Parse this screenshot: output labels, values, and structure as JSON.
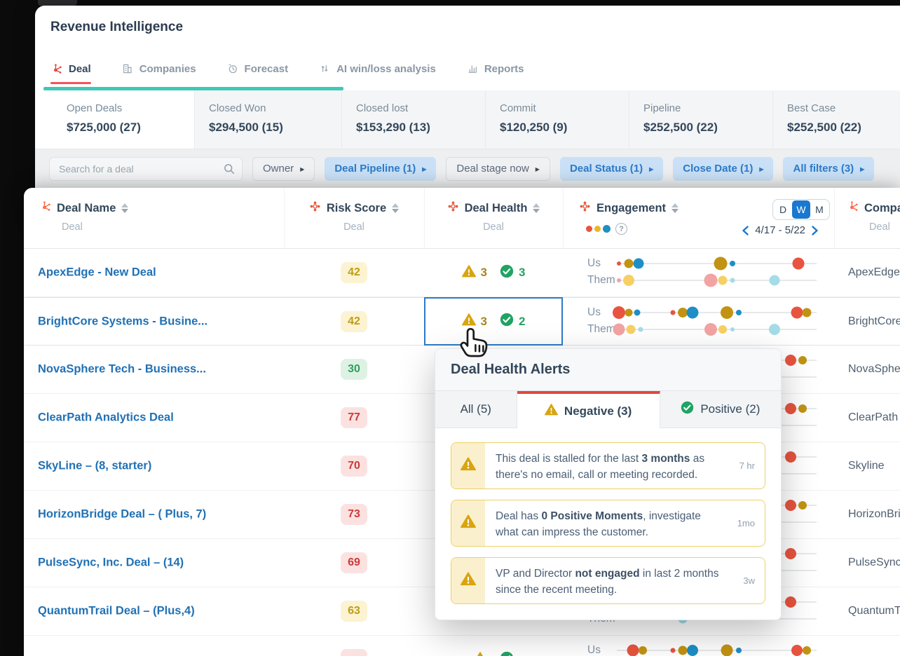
{
  "header": {
    "title": "Revenue Intelligence",
    "tabs": [
      {
        "label": "Deal",
        "icon": "deal-sprocket-icon",
        "active": true
      },
      {
        "label": "Companies",
        "icon": "companies-icon",
        "active": false
      },
      {
        "label": "Forecast",
        "icon": "forecast-icon",
        "active": false
      },
      {
        "label": "AI win/loss analysis",
        "icon": "ai-winloss-icon",
        "active": false
      },
      {
        "label": "Reports",
        "icon": "reports-icon",
        "active": false
      }
    ]
  },
  "summary_cards": [
    {
      "label": "Open Deals",
      "value": "$725,000 (27)",
      "active": true
    },
    {
      "label": "Closed Won",
      "value": "$294,500 (15)",
      "active": false
    },
    {
      "label": "Closed lost",
      "value": "$153,290 (13)",
      "active": false
    },
    {
      "label": "Commit",
      "value": "$120,250 (9)",
      "active": false
    },
    {
      "label": "Pipeline",
      "value": "$252,500 (22)",
      "active": false
    },
    {
      "label": "Best Case",
      "value": "$252,500 (22)",
      "active": false
    }
  ],
  "filter_bar": {
    "search_placeholder": "Search for a deal",
    "filters": [
      {
        "label": "Owner",
        "style": "plain"
      },
      {
        "label": "Deal Pipeline (1)",
        "style": "blue"
      },
      {
        "label": "Deal stage now",
        "style": "plain"
      },
      {
        "label": "Deal Status (1)",
        "style": "blue"
      },
      {
        "label": "Close Date (1)",
        "style": "blue"
      },
      {
        "label": "All filters (3)",
        "style": "blue"
      }
    ]
  },
  "table": {
    "columns": {
      "deal_name": {
        "label": "Deal Name",
        "sub": "Deal"
      },
      "risk_score": {
        "label": "Risk Score",
        "sub": "Deal"
      },
      "deal_health": {
        "label": "Deal Health",
        "sub": "Deal"
      },
      "engagement": {
        "label": "Engagement",
        "legend_colors": [
          "#e8543f",
          "#f0b429",
          "#1e8fc6"
        ],
        "period_options": [
          "D",
          "W",
          "M"
        ],
        "period_selected": "W",
        "date_range": "4/17 - 5/22"
      },
      "company": {
        "label": "Company",
        "sub": "Deal"
      }
    },
    "risk_levels": {
      "yellow": {
        "bg": "#fbf3d2",
        "text": "#c09c13"
      },
      "green": {
        "bg": "#def2e4",
        "text": "#2f9e60"
      },
      "red": {
        "bg": "#fbe2e0",
        "text": "#cc3a3a"
      }
    },
    "dot_colors": {
      "red": "#e8543f",
      "olive": "#c29312",
      "blue": "#1e8fc6",
      "pink": "#f2a3a3",
      "yellow": "#f6cf65",
      "lightblue": "#a5dce8"
    },
    "rows": [
      {
        "deal_name": "ApexEdge - New Deal",
        "risk": {
          "value": "42",
          "level": "yellow"
        },
        "health": {
          "neg": "3",
          "pos": "3",
          "hovered": false
        },
        "company": "ApexEdge",
        "engagement": {
          "us": [
            [
              1,
              "red",
              6
            ],
            [
              6,
              "olive",
              13
            ],
            [
              11,
              "blue",
              15
            ],
            [
              52,
              "olive",
              19
            ],
            [
              58,
              "blue",
              8
            ],
            [
              91,
              "red",
              17
            ]
          ],
          "them": [
            [
              1,
              "pink",
              6
            ],
            [
              6,
              "yellow",
              16
            ],
            [
              47,
              "pink",
              19
            ],
            [
              53,
              "yellow",
              13
            ],
            [
              58,
              "lightblue",
              7
            ],
            [
              79,
              "lightblue",
              15
            ]
          ]
        }
      },
      {
        "deal_name": "BrightCore Systems - Busine...",
        "risk": {
          "value": "42",
          "level": "yellow"
        },
        "health": {
          "neg": "3",
          "pos": "2",
          "hovered": true
        },
        "company": "BrightCore",
        "engagement": {
          "us": [
            [
              1,
              "red",
              18
            ],
            [
              6,
              "olive",
              11
            ],
            [
              10,
              "blue",
              9
            ],
            [
              28,
              "red",
              7
            ],
            [
              33,
              "olive",
              14
            ],
            [
              38,
              "blue",
              17
            ],
            [
              55,
              "olive",
              18
            ],
            [
              61,
              "blue",
              8
            ],
            [
              90,
              "red",
              17
            ],
            [
              95,
              "olive",
              13
            ]
          ],
          "them": [
            [
              1,
              "pink",
              17
            ],
            [
              7,
              "yellow",
              13
            ],
            [
              12,
              "lightblue",
              7
            ],
            [
              47,
              "pink",
              18
            ],
            [
              53,
              "yellow",
              12
            ],
            [
              58,
              "lightblue",
              6
            ],
            [
              79,
              "lightblue",
              16
            ]
          ]
        }
      },
      {
        "deal_name": "NovaSphere Tech - Business...",
        "risk": {
          "value": "30",
          "level": "green"
        },
        "health": {
          "neg": "",
          "pos": "",
          "hovered": false
        },
        "company": "NovaSphere",
        "engagement": {
          "us": [
            [
              87,
              "red",
              16
            ],
            [
              93,
              "olive",
              12
            ]
          ],
          "them": []
        }
      },
      {
        "deal_name": "ClearPath Analytics Deal",
        "risk": {
          "value": "77",
          "level": "red"
        },
        "health": {
          "neg": "",
          "pos": "",
          "hovered": false
        },
        "company": "ClearPath",
        "engagement": {
          "us": [
            [
              87,
              "red",
              16
            ],
            [
              93,
              "olive",
              12
            ]
          ],
          "them": []
        }
      },
      {
        "deal_name": "SkyLine – (8, starter)",
        "risk": {
          "value": "70",
          "level": "red"
        },
        "health": {
          "neg": "",
          "pos": "",
          "hovered": false
        },
        "company": "Skyline",
        "engagement": {
          "us": [
            [
              87,
              "red",
              16
            ]
          ],
          "them": []
        }
      },
      {
        "deal_name": "HorizonBridge Deal – ( Plus, 7)",
        "risk": {
          "value": "73",
          "level": "red"
        },
        "health": {
          "neg": "",
          "pos": "",
          "hovered": false
        },
        "company": "HorizonBridge",
        "engagement": {
          "us": [
            [
              87,
              "red",
              16
            ],
            [
              93,
              "olive",
              12
            ]
          ],
          "them": []
        }
      },
      {
        "deal_name": "PulseSync, Inc. Deal – (14)",
        "risk": {
          "value": "69",
          "level": "red"
        },
        "health": {
          "neg": "",
          "pos": "",
          "hovered": false
        },
        "company": "PulseSync",
        "engagement": {
          "us": [
            [
              87,
              "red",
              16
            ]
          ],
          "them": []
        }
      },
      {
        "deal_name": "QuantumTrail Deal – (Plus,4)",
        "risk": {
          "value": "63",
          "level": "yellow"
        },
        "health": {
          "neg": "",
          "pos": "",
          "hovered": false
        },
        "company": "QuantumTrail",
        "engagement": {
          "us": [
            [
              87,
              "red",
              16
            ]
          ],
          "them": [
            [
              33,
              "lightblue",
              13
            ]
          ]
        }
      },
      {
        "deal_name": "",
        "risk": {
          "value": "",
          "level": "red"
        },
        "health": {
          "neg": "",
          "pos": "",
          "hovered": false
        },
        "company": "",
        "engagement": {
          "us": [
            [
              8,
              "red",
              17
            ],
            [
              13,
              "olive",
              12
            ],
            [
              28,
              "red",
              7
            ],
            [
              33,
              "olive",
              13
            ],
            [
              38,
              "blue",
              16
            ],
            [
              55,
              "olive",
              17
            ],
            [
              61,
              "blue",
              8
            ],
            [
              90,
              "red",
              16
            ],
            [
              95,
              "olive",
              12
            ]
          ],
          "them": []
        }
      }
    ]
  },
  "alerts_popup": {
    "title": "Deal Health Alerts",
    "tabs": [
      {
        "label": "All (5)",
        "icon": "none",
        "active": false
      },
      {
        "label": "Negative (3)",
        "icon": "warning-icon",
        "active": true
      },
      {
        "label": "Positive (2)",
        "icon": "positive-icon",
        "active": false
      }
    ],
    "alerts": [
      {
        "parts": [
          {
            "t": "This deal is stalled for the last "
          },
          {
            "t": "3 months",
            "b": true
          },
          {
            "t": " as there's no email, call or meeting recorded."
          }
        ],
        "time": "7 hr"
      },
      {
        "parts": [
          {
            "t": "Deal has "
          },
          {
            "t": "0 Positive Moments",
            "b": true
          },
          {
            "t": ", investigate what can impress the customer."
          }
        ],
        "time": "1mo"
      },
      {
        "parts": [
          {
            "t": "VP and Director "
          },
          {
            "t": "not engaged",
            "b": true
          },
          {
            "t": " in last 2 months since the recent meeting."
          }
        ],
        "time": "3w"
      }
    ]
  }
}
